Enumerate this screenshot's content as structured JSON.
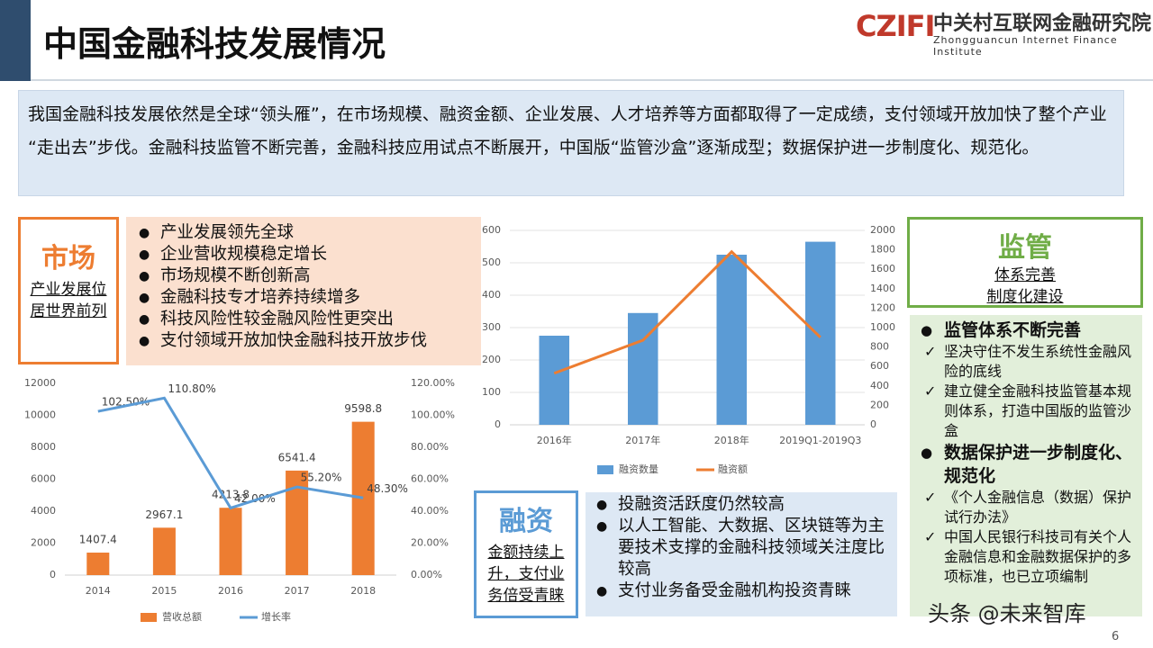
{
  "header": {
    "title": "中国金融科技发展情况",
    "logo_mark": "CZIFI",
    "logo_name": "中关村互联网金融研究院",
    "logo_english": "Zhongguancun Internet Finance Institute"
  },
  "intro": "我国金融科技发展依然是全球“领头雁”，在市场规模、融资金额、企业发展、人才培养等方面都取得了一定成绩，支付领域开放加快了整个产业“走出去”步伐。金融科技监管不断完善，金融科技应用试点不断展开，中国版“监管沙盒”逐渐成型；数据保护进一步制度化、规范化。",
  "market": {
    "title": "市场",
    "subtitle": "产业发展位居世界前列",
    "bullets": [
      "产业发展领先全球",
      "企业营收规模稳定增长",
      "市场规模不断创新高",
      "金融科技专才培养持续增多",
      "科技风险性较金融风险性更突出",
      "支付领域开放加快金融科技开放步伐"
    ]
  },
  "financing": {
    "title": "融资",
    "subtitle": "金额持续上升，支付业务倍受青睐",
    "bullets": [
      "投融资活跃度仍然较高",
      "以人工智能、大数据、区块链等为主要技术支撑的金融科技领域关注度比较高",
      "支付业务备受金融机构投资青睐"
    ]
  },
  "regulation": {
    "title": "监管",
    "subtitle_lines": [
      "体系完善",
      "制度化建设"
    ],
    "sections": [
      {
        "heading": "监管体系不断完善",
        "items": [
          "坚决守住不发生系统性金融风险的底线",
          "建立健全金融科技监管基本规则体系，打造中国版的监管沙盒"
        ]
      },
      {
        "heading": "数据保护进一步制度化、规范化",
        "items": [
          "《个人金融信息（数据）保护试行办法》",
          "中国人民银行科技司有关个人金融信息和金融数据保护的多项标准，也已立项编制"
        ]
      }
    ]
  },
  "chart_data": [
    {
      "type": "bar-line",
      "categories": [
        "2014",
        "2015",
        "2016",
        "2017",
        "2018"
      ],
      "series": [
        {
          "name": "营收总额",
          "type": "bar",
          "color": "#ed7d31",
          "values": [
            1407.4,
            2967.1,
            4213.8,
            6541.4,
            9598.8
          ]
        },
        {
          "name": "增长率",
          "type": "line",
          "axis": "y2",
          "color": "#5b9bd5",
          "values": [
            102.5,
            110.8,
            42,
            55.2,
            48.3
          ],
          "value_labels": [
            "102.50%",
            "110.80%",
            "42.00%",
            "55.20%",
            "48.30%"
          ]
        }
      ],
      "ylim": [
        0,
        12000
      ],
      "yticks": [
        0,
        2000,
        4000,
        6000,
        8000,
        10000,
        12000
      ],
      "y2lim": [
        0,
        120
      ],
      "y2ticks": [
        {
          "value": 0,
          "label": "0.00%"
        },
        {
          "value": 20,
          "label": "20.00%"
        },
        {
          "value": 40,
          "label": "40.00%"
        },
        {
          "value": 60,
          "label": "60.00%"
        },
        {
          "value": 80,
          "label": "80.00%"
        },
        {
          "value": 100,
          "label": "100.00%"
        },
        {
          "value": 120,
          "label": "120.00%"
        }
      ],
      "grid": false
    },
    {
      "type": "bar-line",
      "categories": [
        "2016年",
        "2017年",
        "2018年",
        "2019Q1-2019Q3"
      ],
      "series": [
        {
          "name": "融资数量",
          "type": "bar",
          "color": "#5b9bd5",
          "values": [
            275,
            345,
            525,
            565
          ]
        },
        {
          "name": "融资额",
          "type": "line",
          "axis": "y2",
          "color": "#ed7d31",
          "values": [
            530,
            870,
            1780,
            900
          ]
        }
      ],
      "ylim": [
        0,
        600
      ],
      "yticks": [
        0,
        100,
        200,
        300,
        400,
        500,
        600
      ],
      "y2lim": [
        0,
        2000
      ],
      "y2ticks": [
        0,
        200,
        400,
        600,
        800,
        1000,
        1200,
        1400,
        1600,
        1800,
        2000
      ],
      "grid": true
    }
  ],
  "footer": {
    "source": "头条 @未来智库",
    "page": "6"
  }
}
